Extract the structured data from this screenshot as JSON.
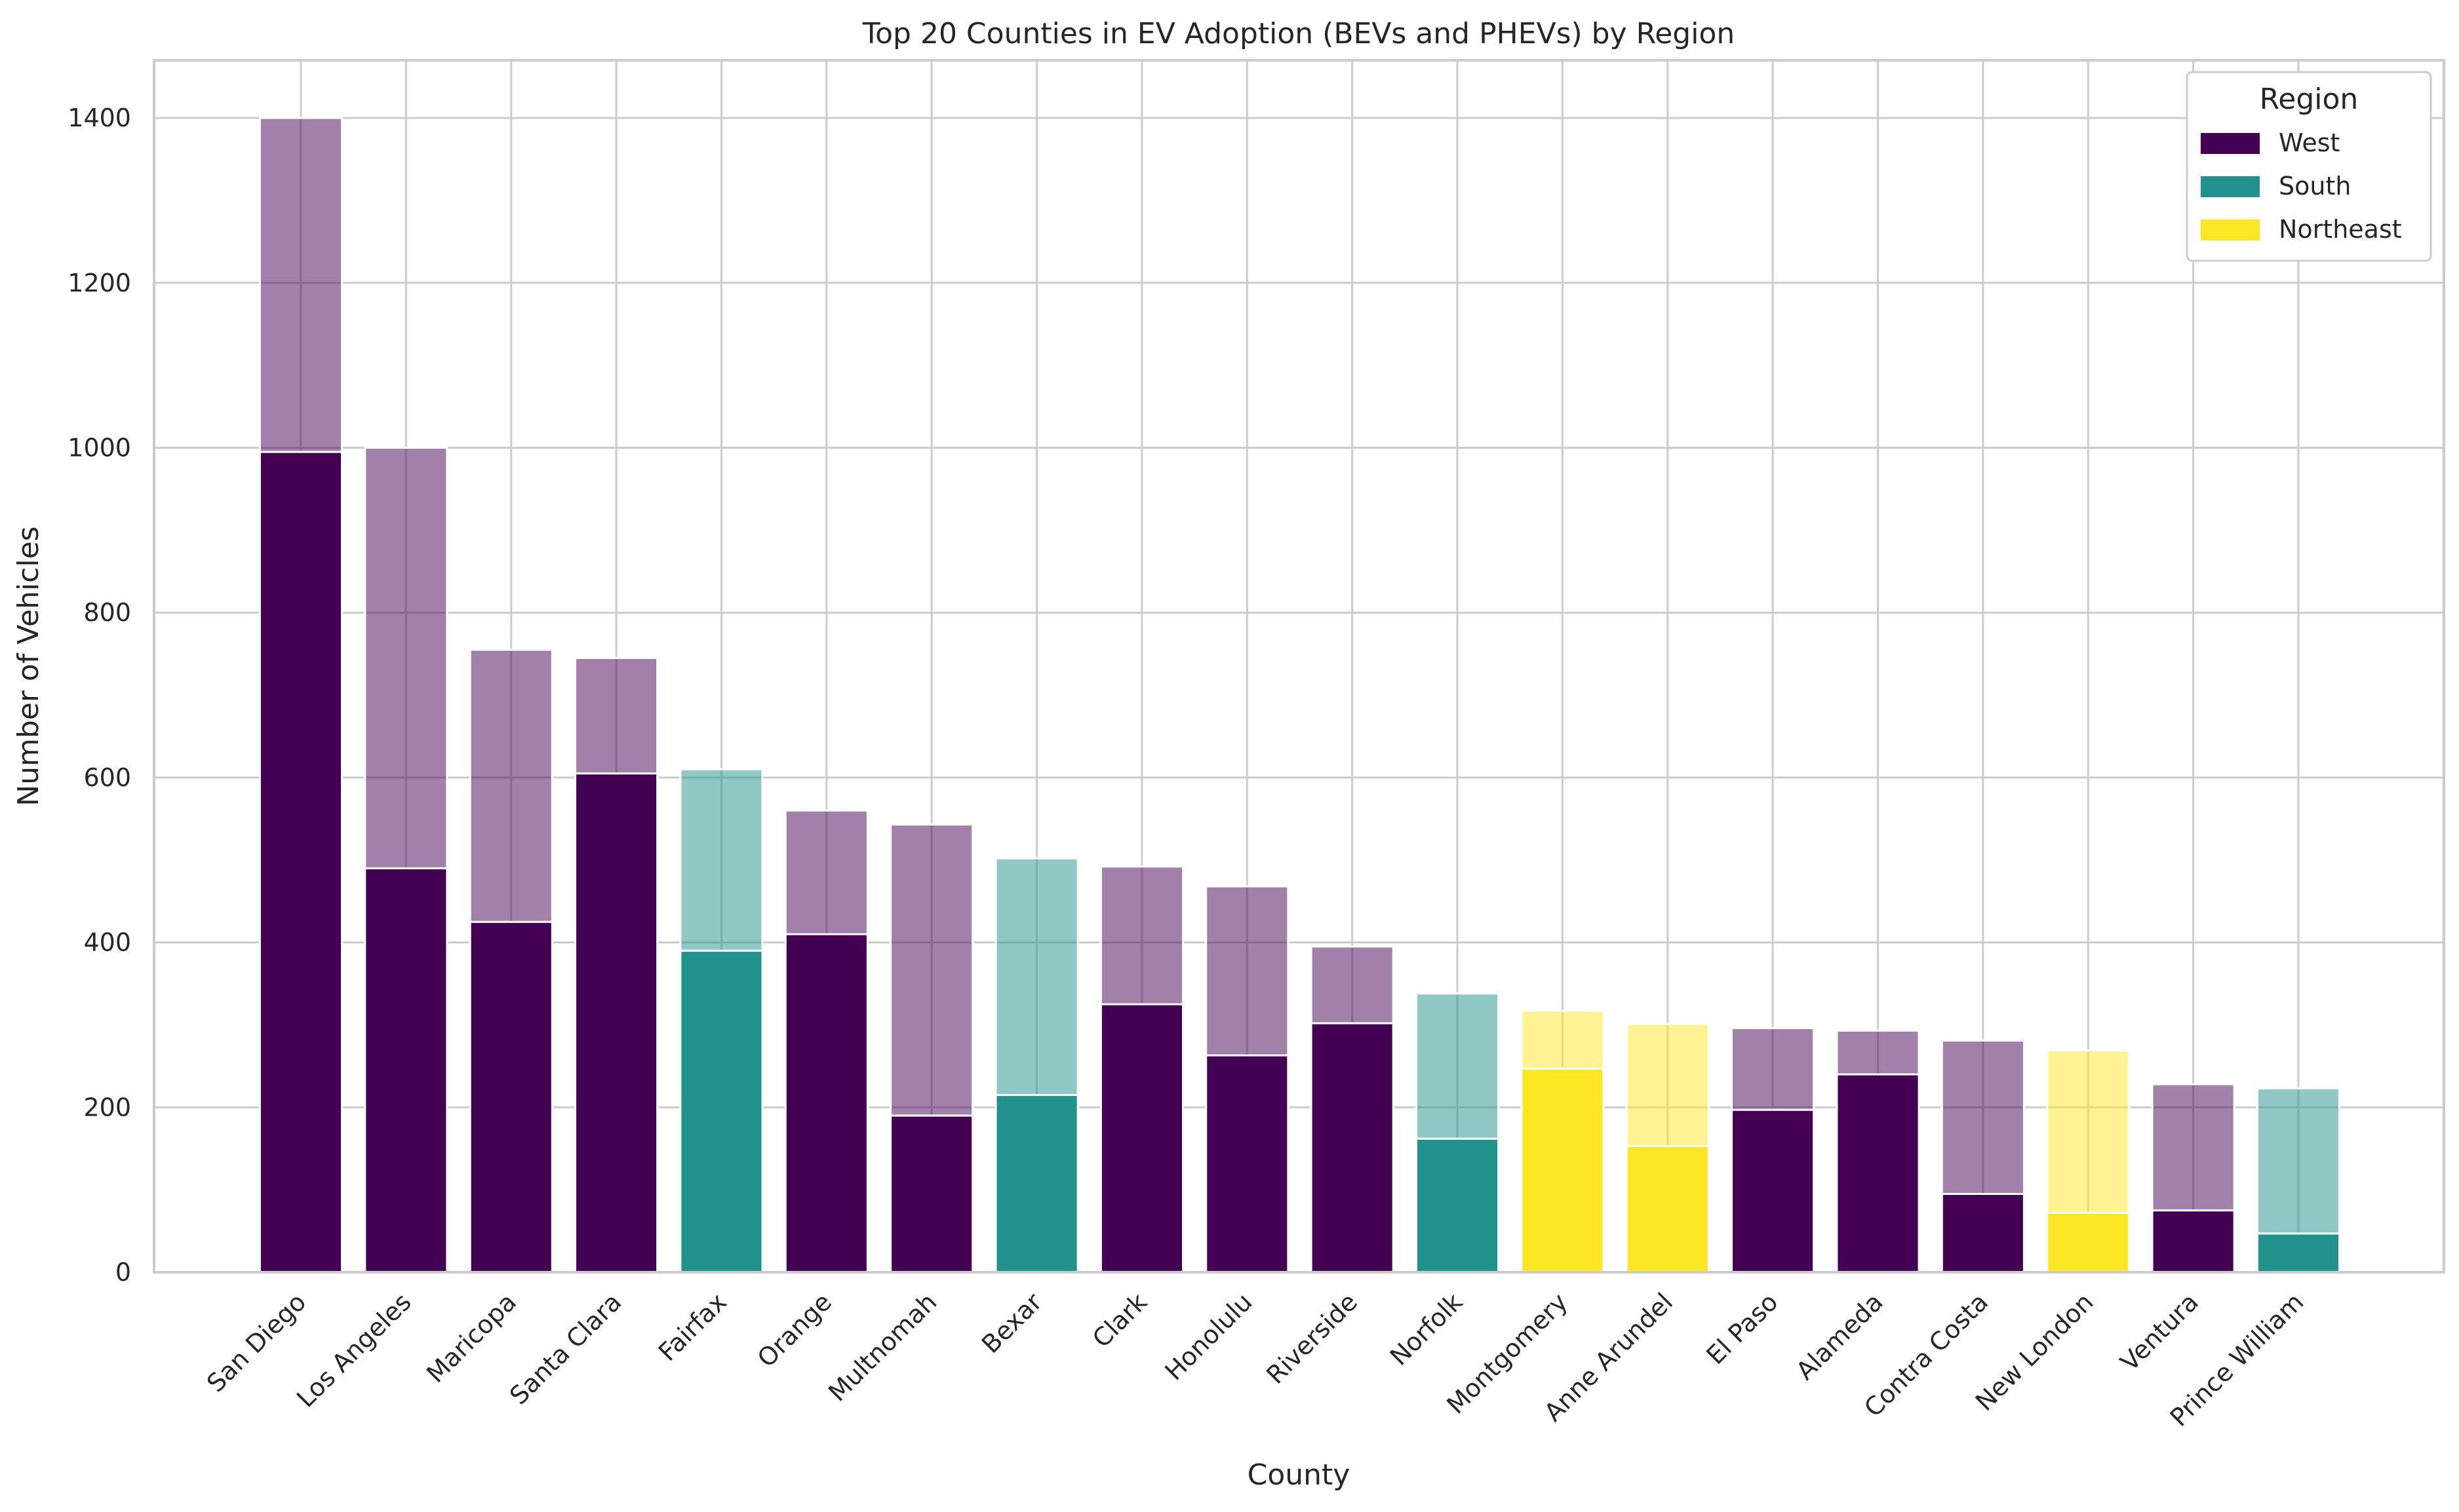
{
  "chart_data": {
    "type": "bar",
    "title": "Top 20 Counties in EV Adoption (BEVs and PHEVs) by Region",
    "xlabel": "County",
    "ylabel": "Number of Vehicles",
    "ylim": [
      0,
      1470
    ],
    "yticks": [
      0,
      200,
      400,
      600,
      800,
      1000,
      1200,
      1400
    ],
    "grid": true,
    "stacked": true,
    "categories": [
      "San Diego",
      "Los Angeles",
      "Maricopa",
      "Santa Clara",
      "Fairfax",
      "Orange",
      "Multnomah",
      "Bexar",
      "Clark",
      "Honolulu",
      "Riverside",
      "Norfolk",
      "Montgomery",
      "Anne Arundel",
      "El Paso",
      "Alameda",
      "Contra Costa",
      "New London",
      "Ventura",
      "Prince William"
    ],
    "regions": [
      "West",
      "West",
      "West",
      "West",
      "South",
      "West",
      "West",
      "South",
      "West",
      "West",
      "West",
      "South",
      "Northeast",
      "Northeast",
      "West",
      "West",
      "West",
      "Northeast",
      "West",
      "South"
    ],
    "series": [
      {
        "part": "lower",
        "values": [
          995,
          490,
          425,
          605,
          390,
          410,
          190,
          215,
          325,
          263,
          302,
          162,
          247,
          153,
          197,
          240,
          95,
          72,
          75,
          47
        ]
      },
      {
        "part": "upper",
        "values": [
          405,
          510,
          330,
          140,
          220,
          150,
          353,
          287,
          167,
          205,
          93,
          176,
          70,
          148,
          99,
          53,
          186,
          197,
          153,
          176
        ]
      }
    ],
    "legend": {
      "title": "Region",
      "position": "top-right",
      "entries": [
        {
          "label": "West",
          "color": "#440154"
        },
        {
          "label": "South",
          "color": "#21918c"
        },
        {
          "label": "Northeast",
          "color": "#fde725"
        }
      ]
    },
    "colors": {
      "West": "#440154",
      "South": "#21918c",
      "Northeast": "#fde725"
    },
    "upper_opacity": 0.5
  }
}
